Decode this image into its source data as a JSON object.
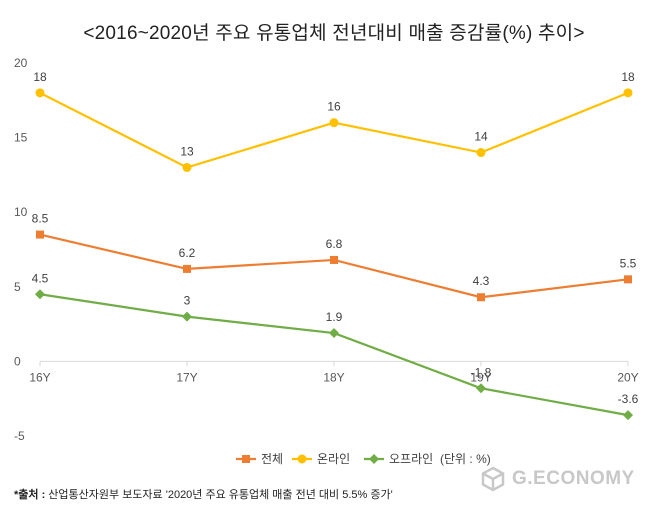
{
  "title": "<2016~2020년 주요 유통업체 전년대비 매출 증감률(%) 추이>",
  "chart_data": {
    "type": "line",
    "categories": [
      "16Y",
      "17Y",
      "18Y",
      "19Y",
      "20Y"
    ],
    "ylim": [
      -5,
      20
    ],
    "yticks": [
      -5,
      0,
      5,
      10,
      15,
      20
    ],
    "grid": false,
    "legend_position": "bottom",
    "unit_note": "(단위 : %)",
    "series": [
      {
        "name": "전체",
        "values": [
          8.5,
          6.2,
          6.8,
          4.3,
          5.5
        ],
        "labels": [
          "8.5",
          "6.2",
          "6.8",
          "4.3",
          "5.5"
        ],
        "color": "#ed7d31",
        "marker": "square"
      },
      {
        "name": "온라인",
        "values": [
          18,
          13,
          16,
          14,
          18
        ],
        "labels": [
          "18",
          "13",
          "16",
          "14",
          "18"
        ],
        "color": "#ffc000",
        "marker": "circle"
      },
      {
        "name": "오프라인",
        "values": [
          4.5,
          3,
          1.9,
          -1.8,
          -3.6
        ],
        "labels": [
          "4.5",
          "3",
          "1.9",
          "-1.8",
          "-3.6"
        ],
        "color": "#70ad47",
        "marker": "diamond"
      }
    ]
  },
  "source": {
    "prefix": "*출처 : ",
    "text": "산업통산자원부 보도자료 '2020년 주요 유통업체 매출 전년 대비 5.5% 증가'"
  },
  "watermark": {
    "text": "G.ECONOMY",
    "icon": "cube-logo-icon"
  }
}
